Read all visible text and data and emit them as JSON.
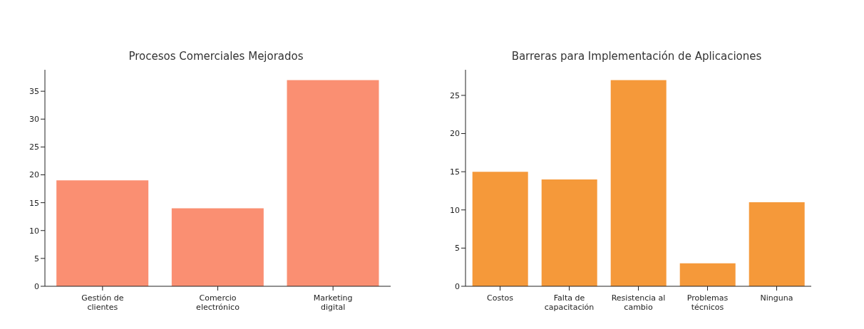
{
  "chart_data": [
    {
      "type": "bar",
      "title": "Procesos Comerciales Mejorados",
      "categories": [
        "Gestión de clientes",
        "Comercio electrónico",
        "Marketing digital"
      ],
      "values": [
        19,
        14,
        37
      ],
      "color": "#fa8f72",
      "ylim": [
        0,
        38.85
      ],
      "yticks": [
        0,
        5,
        10,
        15,
        20,
        25,
        30,
        35
      ]
    },
    {
      "type": "bar",
      "title": "Barreras para Implementación de Aplicaciones",
      "categories": [
        "Costos",
        "Falta de capacitación",
        "Resistencia al cambio",
        "Problemas técnicos",
        "Ninguna"
      ],
      "values": [
        15,
        14,
        27,
        3,
        11
      ],
      "color": "#f5993a",
      "ylim": [
        0,
        28.35
      ],
      "yticks": [
        0,
        5,
        10,
        15,
        20,
        25
      ]
    }
  ]
}
